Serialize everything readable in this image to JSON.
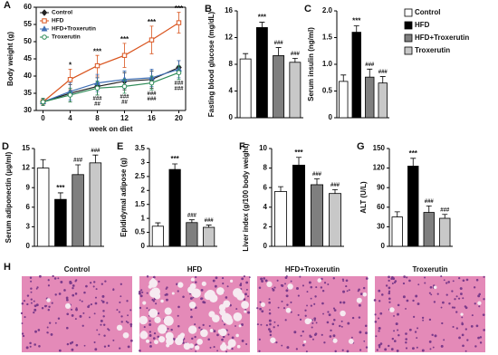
{
  "chart_data": [
    {
      "type": "line",
      "panel": "A",
      "xlabel": "week on diet",
      "ylabel": "Body weight (g)",
      "x": [
        0,
        4,
        8,
        12,
        16,
        20
      ],
      "xlim": [
        -1,
        21
      ],
      "xticks": [
        0,
        4,
        8,
        12,
        16,
        20
      ],
      "ylim": [
        30,
        60
      ],
      "yticks": [
        30,
        35,
        40,
        45,
        50,
        55,
        60
      ],
      "series": [
        {
          "name": "Control",
          "color": "#222222",
          "marker": "diamond",
          "values": [
            32.5,
            35,
            37,
            38.5,
            39,
            42.5
          ],
          "errors": [
            1,
            2.5,
            2.5,
            2.5,
            2.5,
            2
          ]
        },
        {
          "name": "HFD",
          "color": "#d9541e",
          "marker": "square",
          "values": [
            32.5,
            39,
            43,
            46,
            50.5,
            55.5
          ],
          "errors": [
            1,
            3,
            3,
            3.5,
            4,
            3
          ]
        },
        {
          "name": "HFD+Troxerutin",
          "color": "#3f6fb5",
          "marker": "triangle",
          "values": [
            32.5,
            35.5,
            38,
            39,
            39.5,
            42
          ],
          "errors": [
            1,
            2.5,
            2.5,
            2.5,
            2.5,
            2.5
          ]
        },
        {
          "name": "Troxerutin",
          "color": "#2e8b57",
          "marker": "circle",
          "values": [
            32.5,
            34.5,
            36.5,
            37,
            38,
            41
          ],
          "errors": [
            1,
            2,
            2,
            2,
            2,
            2
          ]
        }
      ],
      "annotations": [
        {
          "x": 4,
          "text": "*"
        },
        {
          "x": 8,
          "text": "***"
        },
        {
          "x": 12,
          "text": "***"
        },
        {
          "x": 16,
          "text": "***"
        },
        {
          "x": 20,
          "text": "***"
        }
      ],
      "annotations_below": [
        {
          "x": 8,
          "lines": [
            "###",
            "##"
          ]
        },
        {
          "x": 12,
          "lines": [
            "###",
            "##"
          ]
        },
        {
          "x": 16,
          "lines": [
            "###",
            "###"
          ]
        },
        {
          "x": 20,
          "lines": [
            "###",
            "###"
          ]
        }
      ]
    },
    {
      "type": "bar",
      "panel": "B",
      "ylabel": "Fasting blood glucose (mg/dL)",
      "ylim": [
        0,
        16
      ],
      "yticks": [
        0,
        4,
        8,
        12,
        16
      ],
      "values": [
        8.8,
        13.5,
        9.3,
        8.3
      ],
      "errors": [
        0.8,
        0.8,
        1.2,
        0.6
      ],
      "significance": [
        null,
        "***",
        "###",
        "###"
      ]
    },
    {
      "type": "bar",
      "panel": "C",
      "ylabel": "Serum insulin (ng/ml)",
      "ylim": [
        0,
        2
      ],
      "yticks": [
        0,
        0.5,
        {
          "value": 1,
          "label": "1.0"
        },
        1.5,
        {
          "value": 2,
          "label": "2.0"
        }
      ],
      "values": [
        0.68,
        1.6,
        0.76,
        0.65
      ],
      "errors": [
        0.12,
        0.12,
        0.15,
        0.12
      ],
      "significance": [
        null,
        "***",
        "###",
        "###"
      ]
    },
    {
      "type": "bar",
      "panel": "D",
      "ylabel": "Serum adiponectin (µg/ml)",
      "ylim": [
        0,
        15
      ],
      "yticks": [
        0,
        3,
        6,
        9,
        12,
        15
      ],
      "values": [
        12,
        7.2,
        11,
        12.8
      ],
      "errors": [
        1.3,
        1,
        1.5,
        1.2
      ],
      "significance": [
        null,
        "***",
        "###",
        "###"
      ]
    },
    {
      "type": "bar",
      "panel": "E",
      "ylabel": "Epididymal adipose (g)",
      "ylim": [
        0,
        3.5
      ],
      "yticks": [
        0,
        0.5,
        1,
        1.5,
        2,
        2.5,
        3,
        3.5
      ],
      "values": [
        0.72,
        2.75,
        0.85,
        0.68
      ],
      "errors": [
        0.12,
        0.2,
        0.1,
        0.08
      ],
      "significance": [
        null,
        "***",
        "###",
        "###"
      ]
    },
    {
      "type": "bar",
      "panel": "F",
      "ylabel": "Liver index (g/100 body weight)",
      "ylim": [
        0,
        10
      ],
      "yticks": [
        0,
        2,
        4,
        6,
        8,
        10
      ],
      "values": [
        5.6,
        8.3,
        6.3,
        5.4
      ],
      "errors": [
        0.5,
        0.8,
        0.6,
        0.4
      ],
      "significance": [
        null,
        "***",
        "###",
        "###"
      ]
    },
    {
      "type": "bar",
      "panel": "G",
      "ylabel": "ALT (U/L)",
      "ylim": [
        0,
        150
      ],
      "yticks": [
        0,
        30,
        60,
        90,
        120,
        150
      ],
      "values": [
        45,
        123,
        52,
        43
      ],
      "errors": [
        8,
        12,
        10,
        6
      ],
      "significance": [
        null,
        "***",
        "###",
        "###"
      ]
    }
  ],
  "legend": [
    {
      "name": "Control",
      "color": "#ffffff"
    },
    {
      "name": "HFD",
      "color": "#000000"
    },
    {
      "name": "HFD+Troxerutin",
      "color": "#7f7f7f"
    },
    {
      "name": "Troxerutin",
      "color": "#c8c8c8"
    }
  ],
  "histology": {
    "panel": "H",
    "labels": [
      "Control",
      "HFD",
      "HFD+Troxerutin",
      "Troxerutin"
    ]
  }
}
